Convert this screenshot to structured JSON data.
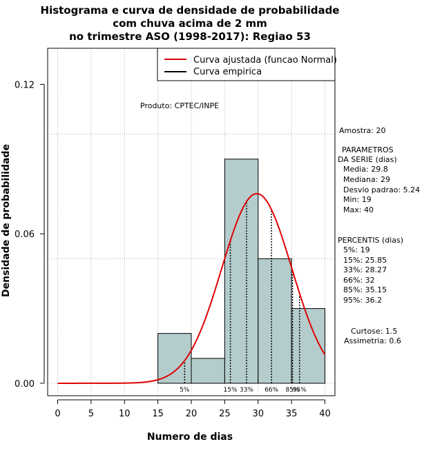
{
  "chart_data": {
    "type": "bar",
    "title_lines": [
      "Histograma e curva de densidade de probabilidade",
      "com chuva acima de 2 mm",
      "no trimestre ASO (1998-2017): Regiao 53"
    ],
    "xlabel": "Numero de dias",
    "ylabel": "Densidade de probabilidade",
    "xlim": [
      -1.5,
      41.5
    ],
    "ylim": [
      -0.005,
      0.1345
    ],
    "x_ticks": [
      0,
      5,
      10,
      15,
      20,
      25,
      30,
      35,
      40
    ],
    "y_ticks": [
      0.0,
      0.06,
      0.12
    ],
    "y_tick_labels": [
      "0.00",
      "0.06",
      "0.12"
    ],
    "grid": true,
    "grid_x": [
      0,
      5,
      10,
      15,
      20,
      25,
      30,
      35,
      40
    ],
    "grid_y": [
      0.0,
      0.05,
      0.1
    ],
    "bins": [
      {
        "from": 15,
        "to": 20,
        "density": 0.02
      },
      {
        "from": 20,
        "to": 25,
        "density": 0.01
      },
      {
        "from": 25,
        "to": 30,
        "density": 0.09
      },
      {
        "from": 30,
        "to": 35,
        "density": 0.05
      },
      {
        "from": 35,
        "to": 40,
        "density": 0.03
      }
    ],
    "bar_color": "#b4cccc",
    "normal_curve": {
      "mean": 29.8,
      "sd": 5.24,
      "from": 0,
      "to": 40,
      "color": "#e00000"
    },
    "legend": {
      "position": "top-right",
      "items": [
        {
          "label": "Curva ajustada (funcao Normal)",
          "color": "#e00000"
        },
        {
          "label": "Curva empirica",
          "color": "#000000"
        }
      ]
    },
    "annotation": "Produto: CPTEC/INPE",
    "percentile_lines": [
      {
        "label": "5%",
        "value": 19
      },
      {
        "label": "15%",
        "value": 25.85
      },
      {
        "label": "33%",
        "value": 28.27
      },
      {
        "label": "66%",
        "value": 32
      },
      {
        "label": "85%",
        "value": 35.15
      },
      {
        "label": "95%",
        "value": 36.2
      }
    ]
  },
  "side_panel": {
    "sample": "Amostra: 20",
    "params_heading_1": "PARAMETROS",
    "params_heading_2": "DA SERIE (dias)",
    "params": [
      "Media: 29.8",
      "Mediana: 29",
      "Desvio padrao: 5.24",
      "Min: 19",
      "Max: 40"
    ],
    "percentis_heading": "PERCENTIS (dias)",
    "percentis": [
      "5%: 19",
      "15%: 25.85",
      "33%: 28.27",
      "66%: 32",
      "85%: 35.15",
      "95%: 36.2"
    ],
    "curtose": "Curtose: 1.5",
    "assimetria": "Assimetria: 0.6"
  }
}
